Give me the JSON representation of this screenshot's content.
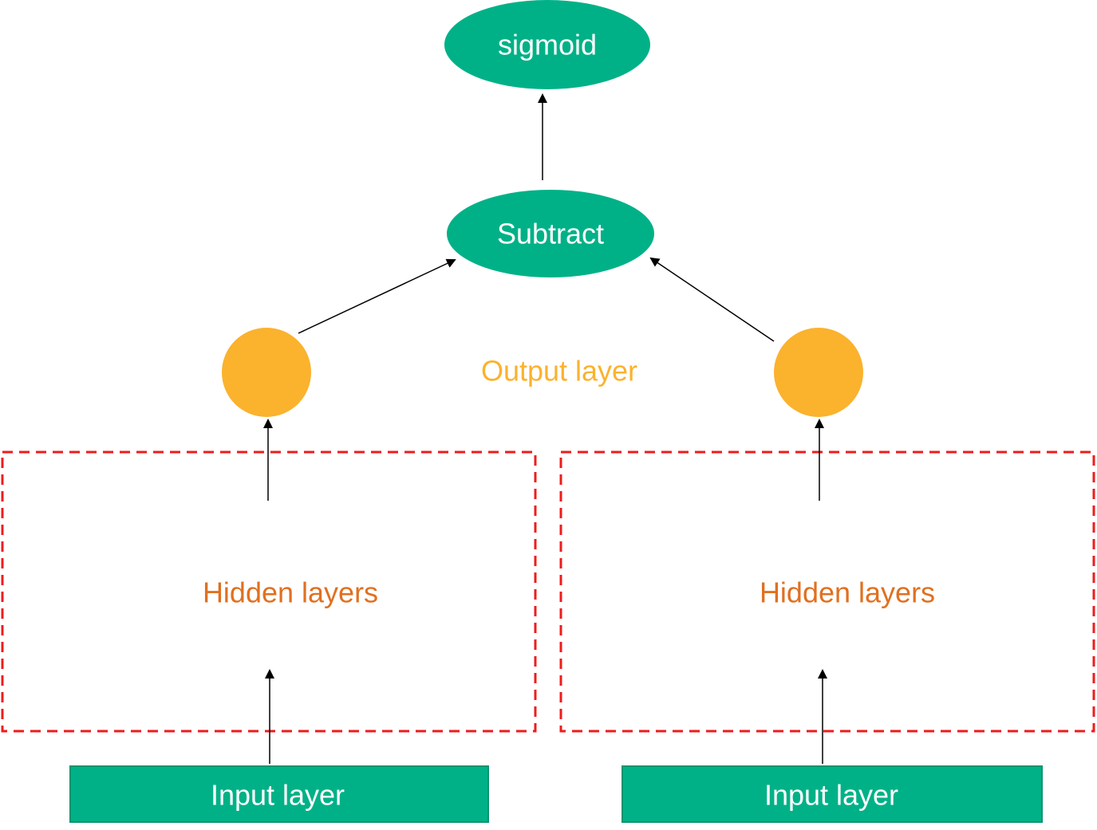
{
  "colors": {
    "node_fill": "#00b187",
    "input_border": "#08946f",
    "output_node": "#fbb22d",
    "output_label": "#fbb22d",
    "hidden_label": "#e07020",
    "dashed_box": "#ee1c1c",
    "arrow": "#000000"
  },
  "nodes": {
    "sigmoid": "sigmoid",
    "subtract": "Subtract",
    "output_label": "Output layer",
    "hidden_left": "Hidden layers",
    "hidden_right": "Hidden layers",
    "input_left": "Input layer",
    "input_right": "Input layer"
  }
}
